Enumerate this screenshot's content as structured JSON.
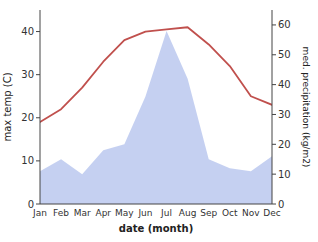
{
  "chart_data": {
    "type": "line",
    "xlabel": "date (month)",
    "ylabel": "max temp (C)",
    "y2label": "med. precipitation (kg/m2)",
    "categories": [
      "Jan",
      "Feb",
      "Mar",
      "Apr",
      "May",
      "Jun",
      "Jul",
      "Aug",
      "Sep",
      "Oct",
      "Nov",
      "Dec"
    ],
    "series": [
      {
        "type": "area",
        "axis": "y2",
        "color": "#bbc8ee",
        "values": [
          11,
          15,
          10,
          18,
          20,
          36,
          58,
          42,
          15,
          12,
          11,
          16
        ]
      },
      {
        "type": "line",
        "color": "#c0504d",
        "values": [
          19,
          22,
          27,
          33,
          38,
          40,
          40.5,
          41,
          37,
          32,
          25,
          23
        ]
      }
    ],
    "ylim": [
      0,
      45
    ],
    "yticks": [
      0,
      10,
      20,
      30,
      40
    ],
    "y2lim": [
      0,
      65
    ],
    "y2ticks": [
      0,
      10,
      20,
      30,
      40,
      50,
      60
    ],
    "grid": false
  }
}
